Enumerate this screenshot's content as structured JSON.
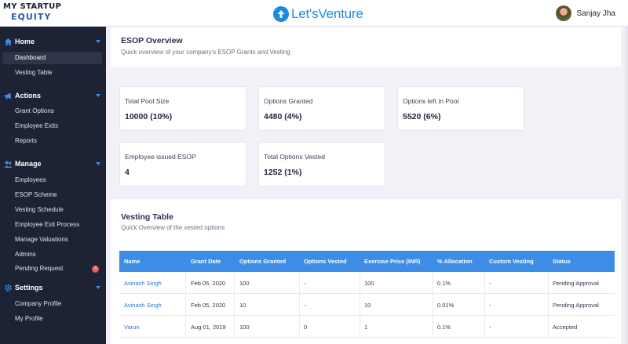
{
  "header": {
    "logo_line1": "MY STARTUP",
    "logo_line2": "EQUITY",
    "brand": "Let'sVenture",
    "user_name": "Sanjay Jha"
  },
  "sidebar": {
    "sections": [
      {
        "label": "Home",
        "icon": "home-icon",
        "items": [
          "Dashboard",
          "Vesting Table"
        ]
      },
      {
        "label": "Actions",
        "icon": "megaphone-icon",
        "items": [
          "Grant Options",
          "Employee Exits",
          "Reports"
        ]
      },
      {
        "label": "Manage",
        "icon": "users-icon",
        "items": [
          "Employees",
          "ESOP Scheme",
          "Vesting Schedule",
          "Employee Exit Process",
          "Manage Valuations",
          "Admins",
          "Pending Request"
        ]
      },
      {
        "label": "Settings",
        "icon": "gear-icon",
        "items": [
          "Company Profile",
          "My Profile"
        ]
      }
    ],
    "active_item": "Dashboard",
    "pending_count": "3"
  },
  "overview": {
    "title": "ESOP Overview",
    "subtitle": "Quick overview of your company's ESOP Grants and Vesting",
    "stats": [
      {
        "label": "Total Pool Size",
        "value": "10000 (10%)"
      },
      {
        "label": "Options Granted",
        "value": "4480 (4%)"
      },
      {
        "label": "Options left in Pool",
        "value": "5520 (6%)"
      },
      {
        "label": "Employee issued ESOP",
        "value": "4"
      },
      {
        "label": "Total Options Vested",
        "value": "1252 (1%)"
      }
    ]
  },
  "vesting": {
    "title": "Vesting Table",
    "subtitle": "Quick Overview of the vested options",
    "columns": [
      "Name",
      "Grant Date",
      "Options Granted",
      "Options Vested",
      "Exercise Price (INR)",
      "% Allocation",
      "Custom Vesting",
      "Status"
    ],
    "rows": [
      [
        "Avinash Singh",
        "Feb 05, 2020",
        "100",
        "-",
        "100",
        "0.1%",
        "-",
        "Pending Approval"
      ],
      [
        "Avinash Singh",
        "Feb 05, 2020",
        "10",
        "-",
        "10",
        "0.01%",
        "-",
        "Pending Approval"
      ],
      [
        "Varun",
        "Aug 01, 2019",
        "100",
        "0",
        "1",
        "0.1%",
        "-",
        "Accepted"
      ]
    ]
  },
  "colors": {
    "sidebar_bg": "#1d2235",
    "accent": "#3d8ce6",
    "badge": "#e85a5a"
  }
}
